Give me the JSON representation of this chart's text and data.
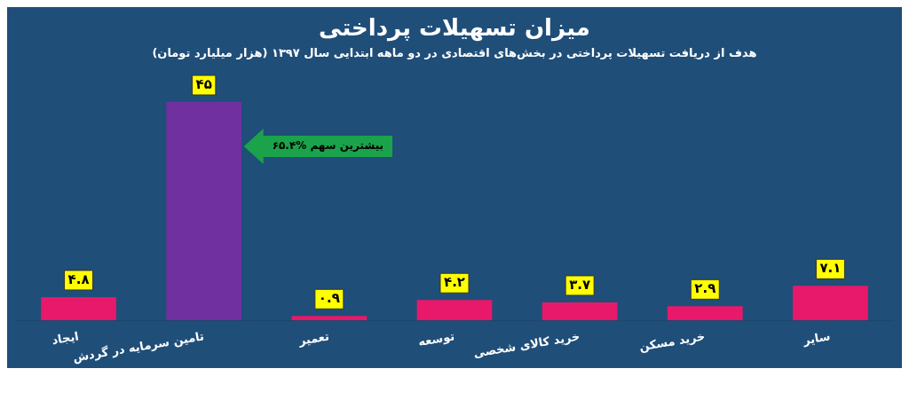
{
  "chart_data": {
    "type": "bar",
    "title": "میزان تسهیلات پرداختی",
    "subtitle": "هدف از دریافت تسهیلات پرداختی در بخش‌های اقتصادی در دو ماهه ابتدایی سال ۱۳۹۷ (هزار میلیارد تومان)",
    "categories": [
      "ایجاد",
      "تامین سرمایه در گردش",
      "تعمیر",
      "توسعه",
      "خرید کالای شخصی",
      "خرید مسکن",
      "سایر"
    ],
    "values": [
      4.8,
      45,
      0.9,
      4.2,
      3.7,
      2.9,
      7.1
    ],
    "colors": [
      "#e8196a",
      "#7030a0",
      "#e8196a",
      "#e8196a",
      "#e8196a",
      "#e8196a",
      "#e8196a"
    ],
    "value_labels": [
      "۴.۸",
      "۴۵",
      "۰.۹",
      "۴.۲",
      "۳.۷",
      "۲.۹",
      "۷.۱"
    ],
    "annotations": [
      "۶۵.۴% بیشترین سهم"
    ],
    "grid": false,
    "legend": false
  }
}
